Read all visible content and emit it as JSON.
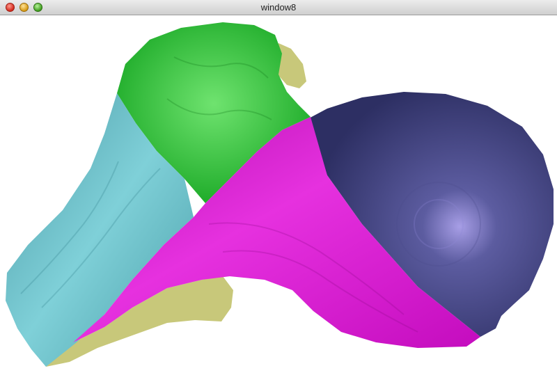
{
  "window": {
    "title": "window8"
  },
  "viewport": {
    "background": "#ffffff",
    "regions": [
      {
        "name": "green",
        "color": "#22c131"
      },
      {
        "name": "cyan",
        "color": "#5fb7c1"
      },
      {
        "name": "magenta",
        "color": "#d612cf"
      },
      {
        "name": "navy",
        "color": "#3b3d78"
      },
      {
        "name": "khaki",
        "color": "#c8c87a"
      }
    ]
  }
}
